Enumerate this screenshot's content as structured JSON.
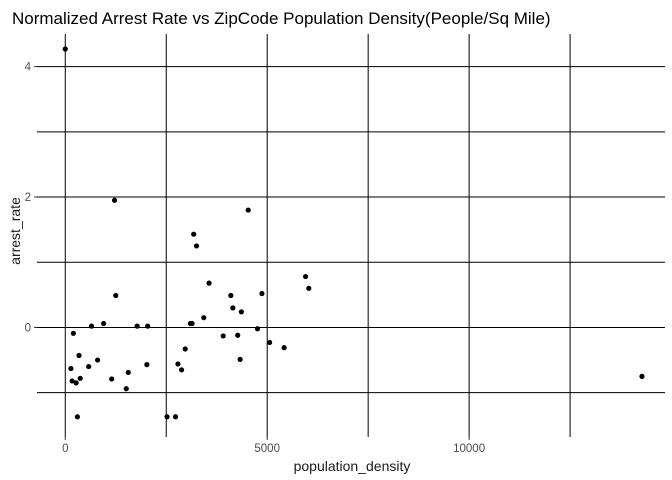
{
  "chart_data": {
    "type": "scatter",
    "title": "Normalized Arrest Rate vs ZipCode Population Density(People/Sq Mile)",
    "xlabel": "population_density",
    "ylabel": "arrest_rate",
    "xlim": [
      -700,
      14850
    ],
    "ylim": [
      -1.68,
      4.5
    ],
    "xticks": [
      0,
      5000,
      10000
    ],
    "xtick_labels": [
      "0",
      "5000",
      "10000"
    ],
    "yticks": [
      0,
      2,
      4
    ],
    "ytick_labels": [
      "0",
      "2",
      "4"
    ],
    "x_minor_gridlines": [
      2500,
      7500,
      12500
    ],
    "y_minor_gridlines": [
      -1,
      1,
      3
    ],
    "grid": true,
    "point_color": "#000000",
    "series": [
      {
        "points": [
          [
            0,
            4.27
          ],
          [
            140,
            -0.63
          ],
          [
            170,
            -0.82
          ],
          [
            200,
            -0.09
          ],
          [
            270,
            -0.85
          ],
          [
            300,
            -1.37
          ],
          [
            340,
            -0.43
          ],
          [
            370,
            -0.78
          ],
          [
            580,
            -0.6
          ],
          [
            650,
            0.02
          ],
          [
            800,
            -0.5
          ],
          [
            950,
            0.06
          ],
          [
            1150,
            -0.79
          ],
          [
            1220,
            1.95
          ],
          [
            1250,
            0.49
          ],
          [
            1510,
            -0.94
          ],
          [
            1560,
            -0.69
          ],
          [
            1780,
            0.02
          ],
          [
            2020,
            -0.57
          ],
          [
            2040,
            0.02
          ],
          [
            2520,
            -1.37
          ],
          [
            2730,
            -1.37
          ],
          [
            2790,
            -0.56
          ],
          [
            2880,
            -0.65
          ],
          [
            2970,
            -0.33
          ],
          [
            3100,
            0.06
          ],
          [
            3140,
            0.06
          ],
          [
            3180,
            1.43
          ],
          [
            3250,
            1.25
          ],
          [
            3430,
            0.15
          ],
          [
            3560,
            0.68
          ],
          [
            3910,
            -0.13
          ],
          [
            4100,
            0.49
          ],
          [
            4150,
            0.3
          ],
          [
            4270,
            -0.12
          ],
          [
            4330,
            -0.49
          ],
          [
            4360,
            0.24
          ],
          [
            4530,
            1.8
          ],
          [
            4760,
            -0.02
          ],
          [
            4870,
            0.52
          ],
          [
            5060,
            -0.23
          ],
          [
            5420,
            -0.31
          ],
          [
            5950,
            0.78
          ],
          [
            6030,
            0.6
          ],
          [
            14280,
            -0.75
          ]
        ]
      }
    ]
  }
}
